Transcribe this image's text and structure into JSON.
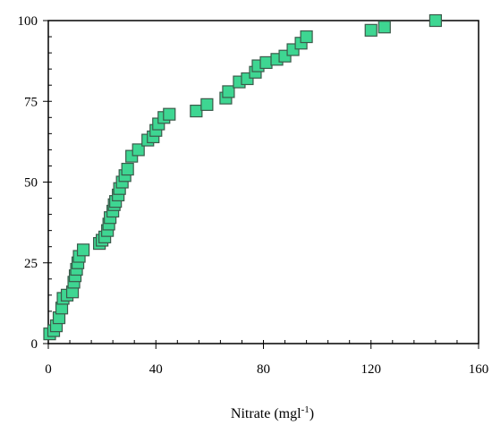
{
  "chart_data": {
    "type": "scatter",
    "title": "",
    "xlabel": "Nitrate (mgl",
    "xlabel_superscript": "-1",
    "xlabel_suffix": ")",
    "ylabel": "",
    "xlim": [
      0,
      160
    ],
    "ylim": [
      0,
      100
    ],
    "x_ticks": [
      "0",
      "40",
      "80",
      "120",
      "160"
    ],
    "y_ticks": [
      "0",
      "25",
      "50",
      "75",
      "100"
    ],
    "grid": false,
    "marker": "square",
    "marker_color": "#3ED692",
    "marker_edge": "#3b5a4a",
    "points": [
      [
        0.5,
        3
      ],
      [
        2,
        4
      ],
      [
        3,
        5.5
      ],
      [
        4,
        8
      ],
      [
        5,
        11
      ],
      [
        5.5,
        14
      ],
      [
        7,
        15
      ],
      [
        9,
        16
      ],
      [
        9.5,
        19
      ],
      [
        10,
        21
      ],
      [
        10.5,
        23
      ],
      [
        11,
        25
      ],
      [
        11.5,
        27
      ],
      [
        13,
        29
      ],
      [
        19,
        31
      ],
      [
        20,
        32
      ],
      [
        21,
        33
      ],
      [
        22,
        35
      ],
      [
        22.5,
        37
      ],
      [
        23,
        39
      ],
      [
        24,
        41
      ],
      [
        24.5,
        43
      ],
      [
        25,
        44
      ],
      [
        26,
        46
      ],
      [
        26.5,
        48
      ],
      [
        27.5,
        50
      ],
      [
        28.5,
        52
      ],
      [
        29.5,
        54
      ],
      [
        31,
        58
      ],
      [
        33.5,
        60
      ],
      [
        37,
        63
      ],
      [
        39,
        64
      ],
      [
        40,
        66
      ],
      [
        41,
        68
      ],
      [
        43,
        70
      ],
      [
        45,
        71
      ],
      [
        55,
        72
      ],
      [
        59,
        74
      ],
      [
        66,
        76
      ],
      [
        67,
        78
      ],
      [
        71,
        81
      ],
      [
        74,
        82
      ],
      [
        77,
        84
      ],
      [
        78,
        86
      ],
      [
        81,
        87
      ],
      [
        85,
        88
      ],
      [
        88,
        89
      ],
      [
        91,
        91
      ],
      [
        94,
        93
      ],
      [
        96,
        95
      ],
      [
        120,
        97
      ],
      [
        125,
        98
      ],
      [
        144,
        100
      ]
    ]
  }
}
